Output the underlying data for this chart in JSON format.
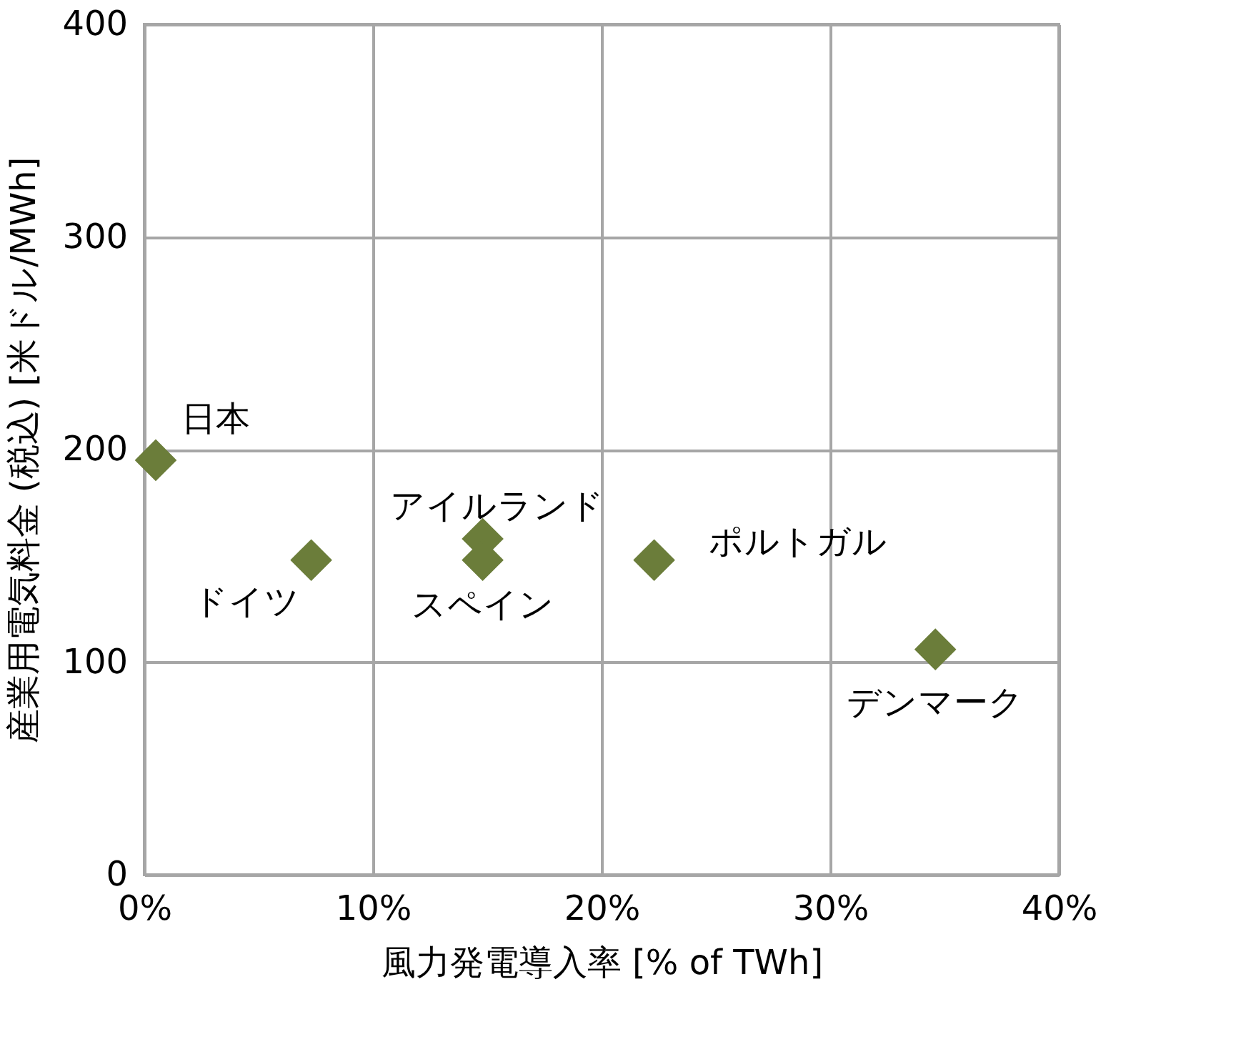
{
  "chart_data": {
    "type": "scatter",
    "xlabel": "風力発電導入率 [% of TWh]",
    "ylabel": "産業用電気料金 (税込) [米ドル/MWh]",
    "x": [
      0.5,
      7.3,
      14.8,
      14.8,
      22.3,
      34.6
    ],
    "series": [
      {
        "color": "#6b7d3a",
        "values": [
          195,
          148,
          158,
          148,
          148,
          106
        ]
      }
    ],
    "marker": "diamond",
    "grid": true,
    "xlim": [
      0,
      40
    ],
    "xticks": [
      {
        "value": 0,
        "label": "0%"
      },
      {
        "value": 10,
        "label": "10%"
      },
      {
        "value": 20,
        "label": "20%"
      },
      {
        "value": 30,
        "label": "30%"
      },
      {
        "value": 40,
        "label": "40%"
      }
    ],
    "ylim": [
      0,
      400
    ],
    "yticks": [
      0,
      100,
      200,
      300,
      400
    ],
    "annotations": [
      {
        "text": "日本",
        "x": 0.5,
        "y": 195
      },
      {
        "text": "ドイツ",
        "x": 7.3,
        "y": 148
      },
      {
        "text": "アイルランド",
        "x": 14.8,
        "y": 158
      },
      {
        "text": "スペイン",
        "x": 14.8,
        "y": 148
      },
      {
        "text": "ポルトガル",
        "x": 22.3,
        "y": 148
      },
      {
        "text": "デンマーク",
        "x": 34.6,
        "y": 106
      }
    ]
  }
}
